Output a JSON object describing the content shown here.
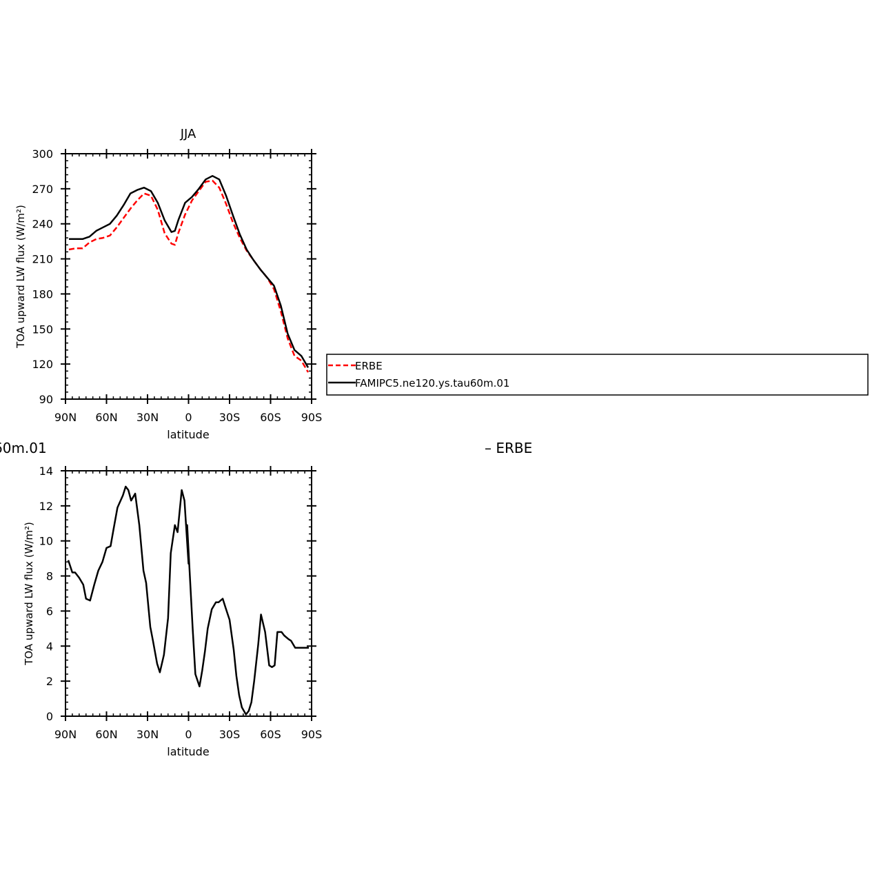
{
  "chart_data": [
    {
      "type": "line",
      "title": "JJA",
      "xlabel": "latitude",
      "ylabel": "TOA upward LW flux (W/m²)",
      "xlim": [
        -90,
        90
      ],
      "ylim": [
        90,
        300
      ],
      "xticks": [
        {
          "value": -90,
          "label": "90N"
        },
        {
          "value": -60,
          "label": "60N"
        },
        {
          "value": -30,
          "label": "30N"
        },
        {
          "value": 0,
          "label": "0"
        },
        {
          "value": 30,
          "label": "30S"
        },
        {
          "value": 60,
          "label": "60S"
        },
        {
          "value": 90,
          "label": "90S"
        }
      ],
      "yticks": [
        90,
        120,
        150,
        180,
        210,
        240,
        270,
        300
      ],
      "series": [
        {
          "name": "ERBE",
          "color": "#ff0000",
          "dash": "dashed",
          "x": [
            -87.5,
            -82.5,
            -77.5,
            -72.5,
            -67.5,
            -62.5,
            -57.5,
            -52.5,
            -47.5,
            -42.5,
            -37.5,
            -32.5,
            -27.5,
            -22.5,
            -17.5,
            -12.5,
            -10,
            -7.5,
            -2.5,
            2.5,
            7.5,
            12.5,
            17.5,
            22.5,
            27.5,
            32.5,
            37.5,
            42.5,
            47.5,
            52.5,
            57.5,
            62.5,
            67.5,
            72.5,
            77.5,
            82.5,
            87.5
          ],
          "y": [
            218,
            219,
            219,
            224,
            227,
            228,
            230,
            237,
            245,
            253,
            260,
            266,
            264,
            252,
            232,
            223,
            222,
            232,
            248,
            260,
            268,
            276,
            277,
            271,
            257,
            241,
            228,
            217,
            209,
            201,
            194,
            184,
            165,
            142,
            127,
            123,
            113
          ]
        },
        {
          "name": "FAMIPC5.ne120.ys.tau60m.01",
          "color": "#000000",
          "dash": "solid",
          "x": [
            -87.5,
            -82.5,
            -77.5,
            -72.5,
            -67.5,
            -62.5,
            -57.5,
            -52.5,
            -47.5,
            -42.5,
            -37.5,
            -32.5,
            -27.5,
            -22.5,
            -17.5,
            -12.5,
            -10,
            -7.5,
            -2.5,
            2.5,
            7.5,
            12.5,
            17.5,
            22.5,
            27.5,
            32.5,
            37.5,
            42.5,
            47.5,
            52.5,
            57.5,
            62.5,
            67.5,
            72.5,
            77.5,
            82.5,
            87.5
          ],
          "y": [
            227,
            227,
            227,
            229,
            234,
            237,
            240,
            247,
            256,
            266,
            269,
            271,
            268,
            258,
            243,
            233,
            234,
            243,
            258,
            263,
            270,
            278,
            281,
            278,
            264,
            247,
            231,
            218,
            209,
            201,
            194,
            187,
            170,
            146,
            132,
            127,
            117
          ]
        }
      ],
      "legend": {
        "placement": "right",
        "entries": [
          "ERBE",
          "FAMIPC5.ne120.ys.tau60m.01"
        ]
      }
    },
    {
      "type": "line",
      "title_fragment": "60m.01",
      "title_right": "– ERBE",
      "xlabel": "latitude",
      "ylabel": "TOA upward LW flux (W/m²)",
      "xlim": [
        -90,
        90
      ],
      "ylim": [
        0,
        14
      ],
      "xticks": [
        {
          "value": -90,
          "label": "90N"
        },
        {
          "value": -60,
          "label": "60N"
        },
        {
          "value": -30,
          "label": "30N"
        },
        {
          "value": 0,
          "label": "0"
        },
        {
          "value": 30,
          "label": "30S"
        },
        {
          "value": 60,
          "label": "60S"
        },
        {
          "value": 90,
          "label": "90S"
        }
      ],
      "yticks": [
        0,
        2,
        4,
        6,
        8,
        10,
        12,
        14
      ],
      "series": [
        {
          "color": "#000000",
          "dash": "solid",
          "x": [
            -88,
            -85,
            -83,
            -80,
            -77,
            -75,
            -72,
            -69,
            -66,
            -63,
            -60,
            -57,
            -55,
            -52,
            -48,
            -46,
            -44,
            -42,
            -39,
            -36,
            -33,
            -31,
            -28,
            -26,
            -23,
            -21,
            -18,
            -15,
            -13,
            -10,
            -8,
            -5,
            -3,
            0,
            -1,
            3,
            5,
            8,
            10,
            12,
            14,
            17,
            20,
            22,
            25,
            27,
            30,
            33,
            35,
            37,
            39,
            42,
            44,
            46,
            48,
            51,
            53,
            56,
            59,
            61,
            63,
            65,
            68,
            70,
            73,
            75,
            78,
            80,
            83,
            85,
            88
          ],
          "y": [
            8.9,
            8.2,
            8.2,
            7.9,
            7.5,
            6.7,
            6.6,
            7.5,
            8.3,
            8.8,
            9.6,
            9.7,
            10.6,
            11.9,
            12.6,
            13.1,
            12.9,
            12.3,
            12.7,
            10.9,
            8.3,
            7.6,
            5.1,
            4.3,
            3.0,
            2.5,
            3.5,
            5.6,
            9.3,
            10.9,
            10.5,
            12.9,
            12.3,
            8.7,
            10.9,
            5.0,
            2.4,
            1.7,
            2.6,
            3.7,
            5.0,
            6.1,
            6.5,
            6.5,
            6.7,
            6.2,
            5.5,
            3.8,
            2.3,
            1.2,
            0.5,
            0.1,
            0.3,
            0.8,
            2.0,
            4.1,
            5.8,
            4.8,
            2.9,
            2.8,
            2.9,
            4.8,
            4.8,
            4.6,
            4.4,
            4.3,
            3.9,
            3.9,
            3.9,
            3.9,
            3.9
          ]
        }
      ]
    }
  ]
}
